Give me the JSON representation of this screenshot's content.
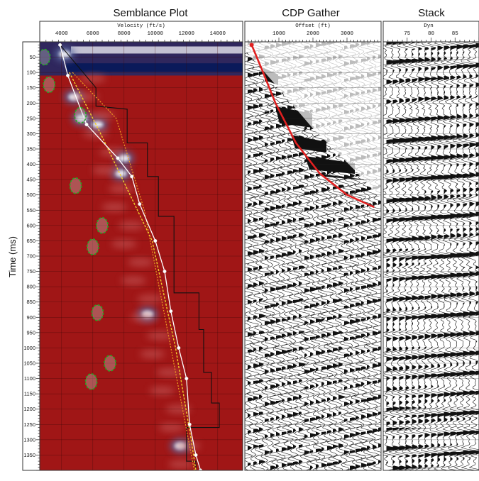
{
  "y_axis_label": "Time (ms)",
  "panels": {
    "semblance": {
      "title": "Semblance Plot",
      "x_axis_title": "Velocity (ft/s)"
    },
    "cdp": {
      "title": "CDP Gather",
      "x_axis_title": "Offset (ft)"
    },
    "stack": {
      "title": "Stack",
      "x_axis_title": "Dyn"
    }
  },
  "colors": {
    "background_red": "#a01616",
    "picked_line": "#ffffff",
    "interval_line": "#111111",
    "guide_line": "#f2d02a",
    "guide_line_2": "#f0a020",
    "green_markers": "#22aa22",
    "moveout_curve": "#e02020"
  },
  "chart_data": [
    {
      "type": "heatmap",
      "title": "Semblance Plot",
      "xlabel": "Velocity (ft/s)",
      "ylabel": "Time (ms)",
      "xlim": [
        2600,
        15600
      ],
      "ylim": [
        0,
        1400
      ],
      "x_ticks": [
        4000,
        6000,
        8000,
        10000,
        12000,
        14000
      ],
      "y_ticks": [
        50,
        100,
        150,
        200,
        250,
        300,
        350,
        400,
        450,
        500,
        550,
        600,
        650,
        700,
        750,
        800,
        850,
        900,
        950,
        1000,
        1050,
        1100,
        1150,
        1200,
        1250,
        1300,
        1350
      ],
      "series": [
        {
          "role": "picked-velocity",
          "points": [
            [
              3900,
              10
            ],
            [
              4400,
              110
            ],
            [
              5600,
              270
            ],
            [
              7600,
              380
            ],
            [
              8500,
              440
            ],
            [
              9000,
              530
            ],
            [
              10000,
              650
            ],
            [
              10600,
              750
            ],
            [
              11000,
              880
            ],
            [
              11500,
              1000
            ],
            [
              12000,
              1100
            ],
            [
              12200,
              1250
            ],
            [
              12600,
              1350
            ],
            [
              12900,
              1400
            ]
          ]
        },
        {
          "role": "interval-velocity",
          "points": [
            [
              3900,
              10
            ],
            [
              6200,
              150
            ],
            [
              6200,
              210
            ],
            [
              8200,
              220
            ],
            [
              8200,
              330
            ],
            [
              9500,
              330
            ],
            [
              9500,
              440
            ],
            [
              10200,
              440
            ],
            [
              10200,
              570
            ],
            [
              11200,
              570
            ],
            [
              11200,
              650
            ],
            [
              11200,
              820
            ],
            [
              12800,
              820
            ],
            [
              12800,
              940
            ],
            [
              13100,
              940
            ],
            [
              13100,
              1080
            ],
            [
              13600,
              1080
            ],
            [
              13600,
              1180
            ],
            [
              14100,
              1180
            ],
            [
              14100,
              1260
            ],
            [
              12000,
              1260
            ],
            [
              12000,
              1370
            ],
            [
              12600,
              1370
            ],
            [
              12600,
              1400
            ]
          ]
        },
        {
          "role": "guide-1",
          "points": [
            [
              4500,
              100
            ],
            [
              6500,
              300
            ],
            [
              9800,
              650
            ],
            [
              11300,
              1000
            ],
            [
              12300,
              1300
            ],
            [
              12600,
              1400
            ]
          ]
        },
        {
          "role": "guide-2",
          "points": [
            [
              4700,
              100
            ],
            [
              7500,
              250
            ],
            [
              9300,
              550
            ],
            [
              11000,
              1000
            ],
            [
              12500,
              1400
            ]
          ]
        }
      ],
      "markers": [
        [
          2900,
          50
        ],
        [
          3200,
          140
        ],
        [
          5200,
          240
        ],
        [
          4900,
          470
        ],
        [
          6600,
          600
        ],
        [
          6000,
          670
        ],
        [
          6300,
          885
        ],
        [
          7100,
          1050
        ],
        [
          5900,
          1110
        ]
      ],
      "bright_zones": [
        [
          4200,
          40
        ],
        [
          4800,
          180
        ],
        [
          5300,
          250
        ],
        [
          6300,
          270
        ],
        [
          8000,
          380
        ],
        [
          7800,
          430
        ],
        [
          9500,
          890
        ],
        [
          11600,
          1320
        ]
      ]
    },
    {
      "type": "line",
      "title": "CDP Gather",
      "xlabel": "Offset (ft)",
      "ylabel": "Time (ms)",
      "xlim": [
        0,
        4000
      ],
      "ylim": [
        0,
        1400
      ],
      "x_ticks": [
        1000,
        2000,
        3000
      ],
      "series": [
        {
          "role": "moveout-curve",
          "x": [
            200,
            500,
            900,
            1500,
            2200,
            3000,
            3800
          ],
          "y": [
            10,
            90,
            200,
            330,
            430,
            500,
            540
          ]
        }
      ]
    },
    {
      "type": "line",
      "title": "Stack",
      "xlabel": "Dyn",
      "ylabel": "Time (ms)",
      "xlim": [
        70,
        90
      ],
      "ylim": [
        0,
        1400
      ],
      "x_ticks": [
        75,
        80,
        85
      ]
    }
  ]
}
